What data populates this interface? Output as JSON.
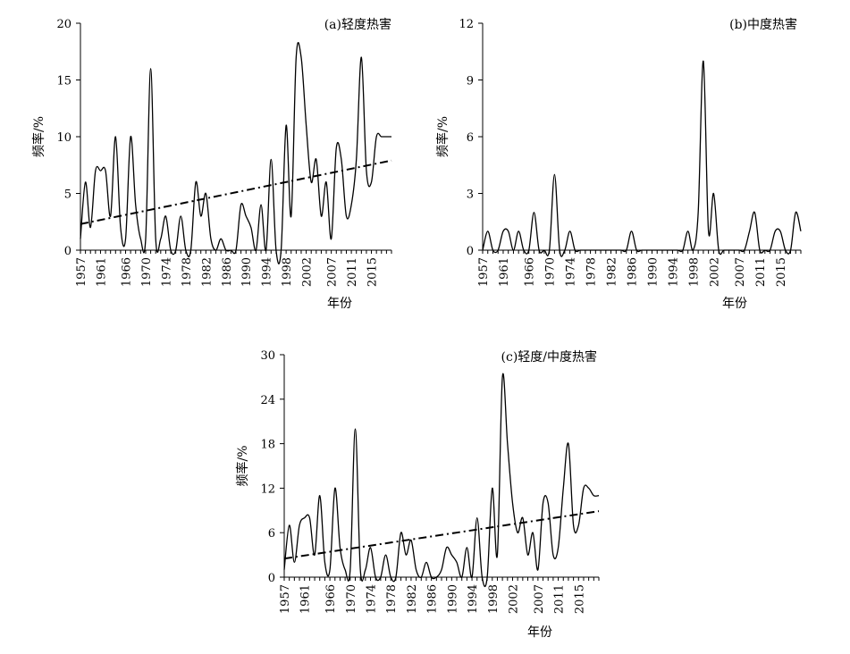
{
  "chart_data": [
    {
      "type": "line",
      "title": "(a)轻度热害",
      "xlabel": "年份",
      "ylabel": "频率/%",
      "ylim": [
        0,
        20
      ],
      "yticks": [
        0,
        5,
        10,
        15,
        20
      ],
      "xlim": [
        1957,
        2019
      ],
      "xticks": [
        1957,
        1961,
        1966,
        1970,
        1974,
        1978,
        1982,
        1986,
        1990,
        1994,
        1998,
        2002,
        2007,
        2011,
        2015
      ],
      "series": [
        {
          "x": [
            1957,
            1958,
            1959,
            1960,
            1961,
            1962,
            1963,
            1964,
            1965,
            1966,
            1967,
            1968,
            1969,
            1970,
            1971,
            1972,
            1973,
            1974,
            1975,
            1976,
            1977,
            1978,
            1979,
            1980,
            1981,
            1982,
            1983,
            1984,
            1985,
            1986,
            1987,
            1988,
            1989,
            1990,
            1991,
            1992,
            1993,
            1994,
            1995,
            1996,
            1997,
            1998,
            1999,
            2000,
            2001,
            2002,
            2003,
            2004,
            2005,
            2006,
            2007,
            2008,
            2009,
            2010,
            2011,
            2012,
            2013,
            2014,
            2015,
            2016,
            2017,
            2018,
            2019
          ],
          "values": [
            1,
            6,
            2,
            7,
            7,
            7,
            3,
            10,
            2,
            1,
            10,
            4,
            1,
            1,
            16,
            1,
            1,
            3,
            0,
            0,
            3,
            0,
            0,
            6,
            3,
            5,
            1,
            0,
            1,
            0,
            0,
            0,
            4,
            3,
            2,
            0,
            4,
            0,
            8,
            0,
            0,
            11,
            3,
            17,
            17,
            11,
            6,
            8,
            3,
            6,
            1,
            9,
            8,
            3,
            4,
            8,
            17,
            7,
            6,
            10,
            10,
            10,
            10
          ]
        },
        {
          "name": "",
          "kind": "trend",
          "x": [
            1957,
            2019
          ],
          "values": [
            2.3,
            7.9
          ]
        }
      ]
    },
    {
      "type": "line",
      "title": "(b)中度热害",
      "xlabel": "年份",
      "ylabel": "频率/%",
      "ylim": [
        0,
        12
      ],
      "yticks": [
        0,
        3,
        6,
        9,
        12
      ],
      "xlim": [
        1957,
        2019
      ],
      "xticks": [
        1957,
        1961,
        1966,
        1970,
        1974,
        1978,
        1982,
        1986,
        1990,
        1994,
        1998,
        2002,
        2007,
        2011,
        2015
      ],
      "series": [
        {
          "x": [
            1957,
            1958,
            1959,
            1960,
            1961,
            1962,
            1963,
            1964,
            1965,
            1966,
            1967,
            1968,
            1969,
            1970,
            1971,
            1972,
            1973,
            1974,
            1975,
            1976,
            1977,
            1978,
            1979,
            1980,
            1981,
            1982,
            1983,
            1984,
            1985,
            1986,
            1987,
            1988,
            1989,
            1990,
            1991,
            1992,
            1993,
            1994,
            1995,
            1996,
            1997,
            1998,
            1999,
            2000,
            2001,
            2002,
            2003,
            2004,
            2005,
            2006,
            2007,
            2008,
            2009,
            2010,
            2011,
            2012,
            2013,
            2014,
            2015,
            2016,
            2017,
            2018,
            2019
          ],
          "values": [
            0,
            1,
            0,
            0,
            1,
            1,
            0,
            1,
            0,
            0,
            2,
            0,
            0,
            0,
            4,
            0,
            0,
            1,
            0,
            0,
            0,
            0,
            0,
            0,
            0,
            0,
            0,
            0,
            0,
            1,
            0,
            0,
            0,
            0,
            0,
            0,
            0,
            0,
            0,
            0,
            1,
            0,
            2,
            10,
            1,
            3,
            0,
            0,
            0,
            0,
            0,
            0,
            1,
            2,
            0,
            0,
            0,
            1,
            1,
            0,
            0,
            2,
            1
          ]
        }
      ]
    },
    {
      "type": "line",
      "title": "(c)轻度/中度热害",
      "xlabel": "年份",
      "ylabel": "频率/%",
      "ylim": [
        0,
        30
      ],
      "yticks": [
        0,
        6,
        12,
        18,
        24,
        30
      ],
      "xlim": [
        1957,
        2019
      ],
      "xticks": [
        1957,
        1961,
        1966,
        1970,
        1974,
        1978,
        1982,
        1986,
        1990,
        1994,
        1998,
        2002,
        2007,
        2011,
        2015
      ],
      "series": [
        {
          "x": [
            1957,
            1958,
            1959,
            1960,
            1961,
            1962,
            1963,
            1964,
            1965,
            1966,
            1967,
            1968,
            1969,
            1970,
            1971,
            1972,
            1973,
            1974,
            1975,
            1976,
            1977,
            1978,
            1979,
            1980,
            1981,
            1982,
            1983,
            1984,
            1985,
            1986,
            1987,
            1988,
            1989,
            1990,
            1991,
            1992,
            1993,
            1994,
            1995,
            1996,
            1997,
            1998,
            1999,
            2000,
            2001,
            2002,
            2003,
            2004,
            2005,
            2006,
            2007,
            2008,
            2009,
            2010,
            2011,
            2012,
            2013,
            2014,
            2015,
            2016,
            2017,
            2018,
            2019
          ],
          "values": [
            1,
            7,
            2,
            7,
            8,
            8,
            3,
            11,
            2,
            1,
            12,
            4,
            1,
            1,
            20,
            1,
            1,
            4,
            0,
            0,
            3,
            0,
            0,
            6,
            3,
            5,
            1,
            0,
            2,
            0,
            0,
            1,
            4,
            3,
            2,
            0,
            4,
            0,
            8,
            0,
            0,
            12,
            3,
            27,
            18,
            10,
            6,
            8,
            3,
            6,
            1,
            10,
            10,
            3,
            4,
            12,
            18,
            7,
            7,
            12,
            12,
            11,
            11
          ]
        },
        {
          "name": "",
          "kind": "trend",
          "x": [
            1957,
            2019
          ],
          "values": [
            2.5,
            8.9
          ]
        }
      ]
    }
  ]
}
